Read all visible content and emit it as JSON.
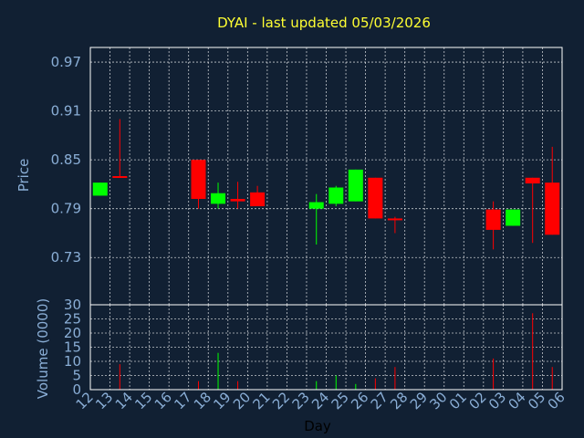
{
  "chart_data": {
    "type": "candlestick",
    "title": "DYAI - last updated 05/03/2026",
    "xlabel": "Day",
    "price_panel": {
      "ylabel": "Price",
      "yticks": [
        0.73,
        0.79,
        0.85,
        0.91,
        0.97
      ],
      "ytick_labels": [
        "0.73",
        "0.79",
        "0.85",
        "0.91",
        "0.97"
      ],
      "ylim": [
        0.672,
        0.988
      ],
      "grid": true
    },
    "volume_panel": {
      "ylabel": "Volume (0000)",
      "yticks": [
        0,
        5,
        10,
        15,
        20,
        25,
        30
      ],
      "ytick_labels": [
        "0",
        "5",
        "10",
        "15",
        "20",
        "25",
        "30"
      ],
      "ylim": [
        0,
        30
      ],
      "grid": true
    },
    "x_tick_labels": [
      "12",
      "13",
      "14",
      "15",
      "16",
      "17",
      "18",
      "19",
      "20",
      "21",
      "22",
      "23",
      "24",
      "25",
      "26",
      "27",
      "28",
      "29",
      "30",
      "01",
      "02",
      "03",
      "04",
      "05",
      "06"
    ],
    "colors": {
      "up": "#00ff00",
      "down": "#ff0000"
    },
    "candles": [
      {
        "x": 0,
        "open": 0.806,
        "high": 0.822,
        "low": 0.806,
        "close": 0.822,
        "volume": 0
      },
      {
        "x": 1,
        "open": 0.83,
        "high": 0.9,
        "low": 0.828,
        "close": 0.828,
        "volume": 9
      },
      {
        "x": 5,
        "open": 0.85,
        "high": 0.85,
        "low": 0.79,
        "close": 0.802,
        "volume": 3
      },
      {
        "x": 6,
        "open": 0.796,
        "high": 0.822,
        "low": 0.79,
        "close": 0.809,
        "volume": 13
      },
      {
        "x": 7,
        "open": 0.802,
        "high": 0.823,
        "low": 0.79,
        "close": 0.799,
        "volume": 3
      },
      {
        "x": 8,
        "open": 0.81,
        "high": 0.818,
        "low": 0.793,
        "close": 0.793,
        "volume": 0
      },
      {
        "x": 11,
        "open": 0.79,
        "high": 0.808,
        "low": 0.746,
        "close": 0.798,
        "volume": 3
      },
      {
        "x": 12,
        "open": 0.796,
        "high": 0.818,
        "low": 0.793,
        "close": 0.816,
        "volume": 5
      },
      {
        "x": 13,
        "open": 0.799,
        "high": 0.838,
        "low": 0.799,
        "close": 0.838,
        "volume": 2
      },
      {
        "x": 14,
        "open": 0.828,
        "high": 0.828,
        "low": 0.778,
        "close": 0.778,
        "volume": 4
      },
      {
        "x": 15,
        "open": 0.778,
        "high": 0.78,
        "low": 0.76,
        "close": 0.777,
        "volume": 8
      },
      {
        "x": 20,
        "open": 0.789,
        "high": 0.799,
        "low": 0.74,
        "close": 0.764,
        "volume": 11
      },
      {
        "x": 21,
        "open": 0.769,
        "high": 0.789,
        "low": 0.769,
        "close": 0.789,
        "volume": 0
      },
      {
        "x": 22,
        "open": 0.828,
        "high": 0.828,
        "low": 0.748,
        "close": 0.821,
        "volume": 27
      },
      {
        "x": 23,
        "open": 0.822,
        "high": 0.866,
        "low": 0.758,
        "close": 0.758,
        "volume": 8
      }
    ]
  }
}
